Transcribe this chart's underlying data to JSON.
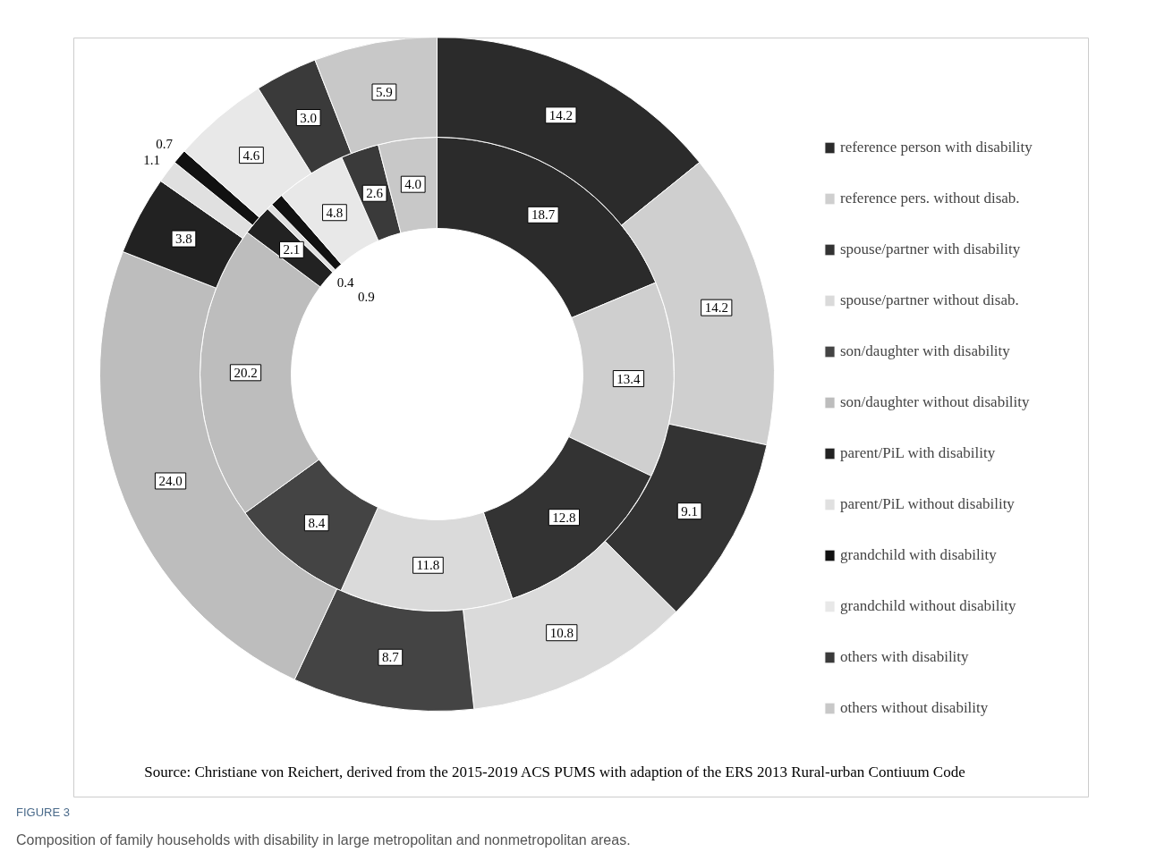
{
  "chart_data": {
    "type": "donut",
    "title": "Composition of family households with disability in large metropolitan and nonmetropolitan areas.",
    "annotations": [
      "Source: Christiane von Reichert, derived from the 2015-2019 ACS PUMS with adaption of the ERS 2013 Rural-urban Contiuum Code",
      "FIGURE 3"
    ],
    "categories": [
      "reference person with disability",
      "reference pers. without disab.",
      "spouse/partner with disability",
      "spouse/partner without disab.",
      "son/daughter with disability",
      "son/daughter without disability",
      "parent/PiL with disability",
      "parent/PiL without disability",
      "grandchild with disability",
      "grandchild without disability",
      "others with disability",
      "others without disability"
    ],
    "colors": [
      "#2b2b2b",
      "#cfcfcf",
      "#333333",
      "#dadada",
      "#444444",
      "#bdbdbd",
      "#222222",
      "#e0e0e0",
      "#111111",
      "#e8e8e8",
      "#3a3a3a",
      "#c8c8c8"
    ],
    "series": [
      {
        "values": [
          18.7,
          13.4,
          12.8,
          11.8,
          8.4,
          20.2,
          2.1,
          0.4,
          0.9,
          4.8,
          2.6,
          4.0
        ],
        "value_labels": [
          "18.7",
          "13.4",
          "12.8",
          "11.8",
          "8.4",
          "20.2",
          "2.1",
          "0.4",
          "0.9",
          "4.8",
          "2.6",
          "4.0"
        ]
      },
      {
        "values": [
          14.2,
          14.2,
          9.1,
          10.8,
          8.7,
          24.0,
          3.8,
          1.1,
          0.7,
          4.6,
          3.0,
          5.9
        ],
        "value_labels": [
          "14.2",
          "14.2",
          "9.1",
          "10.8",
          "8.7",
          "24.0",
          "3.8",
          "1.1",
          "0.7",
          "4.6",
          "3.0",
          "5.9"
        ]
      }
    ],
    "legend": "right"
  }
}
